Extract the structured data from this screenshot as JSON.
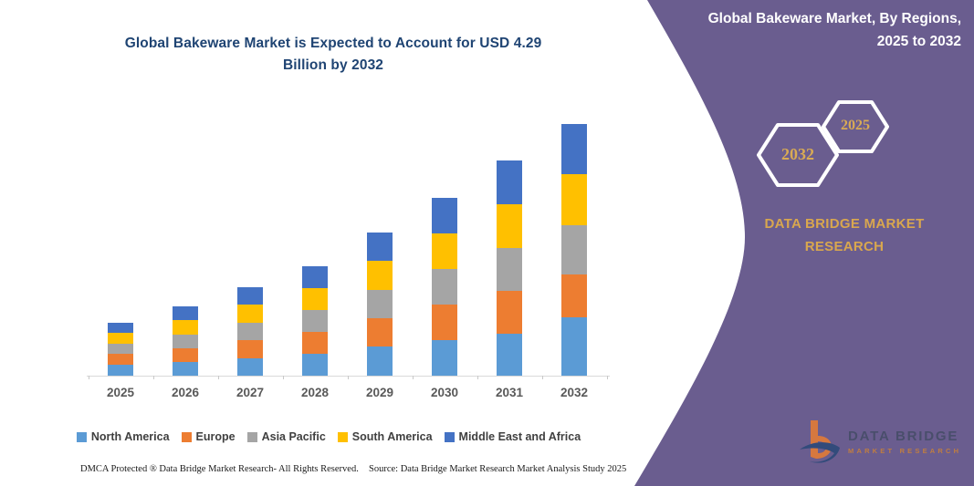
{
  "chart": {
    "title_line1": "Global Bakeware Market is Expected to Account for USD 4.29",
    "title_line2": "Billion by 2032"
  },
  "chart_data": {
    "type": "bar",
    "stacked": true,
    "title": "Global Bakeware Market is Expected to Account for USD 4.29 Billion by 2032",
    "unit": "USD Billion",
    "categories": [
      "2025",
      "2026",
      "2027",
      "2028",
      "2029",
      "2030",
      "2031",
      "2032"
    ],
    "series": [
      {
        "name": "North America",
        "color": "#5B9BD5",
        "values": [
          0.18,
          0.24,
          0.3,
          0.37,
          0.49,
          0.61,
          0.72,
          0.99
        ]
      },
      {
        "name": "Europe",
        "color": "#ED7D31",
        "values": [
          0.18,
          0.24,
          0.31,
          0.37,
          0.48,
          0.61,
          0.73,
          0.73
        ]
      },
      {
        "name": "Asia Pacific",
        "color": "#A5A5A5",
        "values": [
          0.17,
          0.24,
          0.3,
          0.37,
          0.48,
          0.61,
          0.73,
          0.84
        ]
      },
      {
        "name": "South America",
        "color": "#FFC000",
        "values": [
          0.19,
          0.25,
          0.31,
          0.37,
          0.49,
          0.61,
          0.74,
          0.87
        ]
      },
      {
        "name": "Middle East and Africa",
        "color": "#4472C4",
        "values": [
          0.17,
          0.23,
          0.3,
          0.37,
          0.48,
          0.61,
          0.75,
          0.86
        ]
      }
    ],
    "totals": [
      0.89,
      1.2,
      1.52,
      1.85,
      2.42,
      3.05,
      3.67,
      4.29
    ],
    "ylim": [
      0,
      4.5
    ],
    "grid": false,
    "y_axis_shown": false,
    "legend_position": "bottom",
    "values_estimated_from_pixels": true
  },
  "sidebar": {
    "title_line1": "Global Bakeware Market, By Regions,",
    "title_line2": "2025 to 2032",
    "hexagons": [
      {
        "label": "2032"
      },
      {
        "label": "2025"
      }
    ],
    "brand_line1": "DATA BRIDGE MARKET",
    "brand_line2": "RESEARCH",
    "logo": {
      "line1": "DATA BRIDGE",
      "line2": "MARKET RESEARCH"
    },
    "colors": {
      "panel": "#6a5d8f",
      "gold": "#d9ab54"
    }
  },
  "footer": {
    "left": "DMCA Protected ® Data Bridge Market Research-  All Rights Reserved.",
    "right": "Source: Data Bridge Market Research  Market Analysis Study 2025"
  }
}
